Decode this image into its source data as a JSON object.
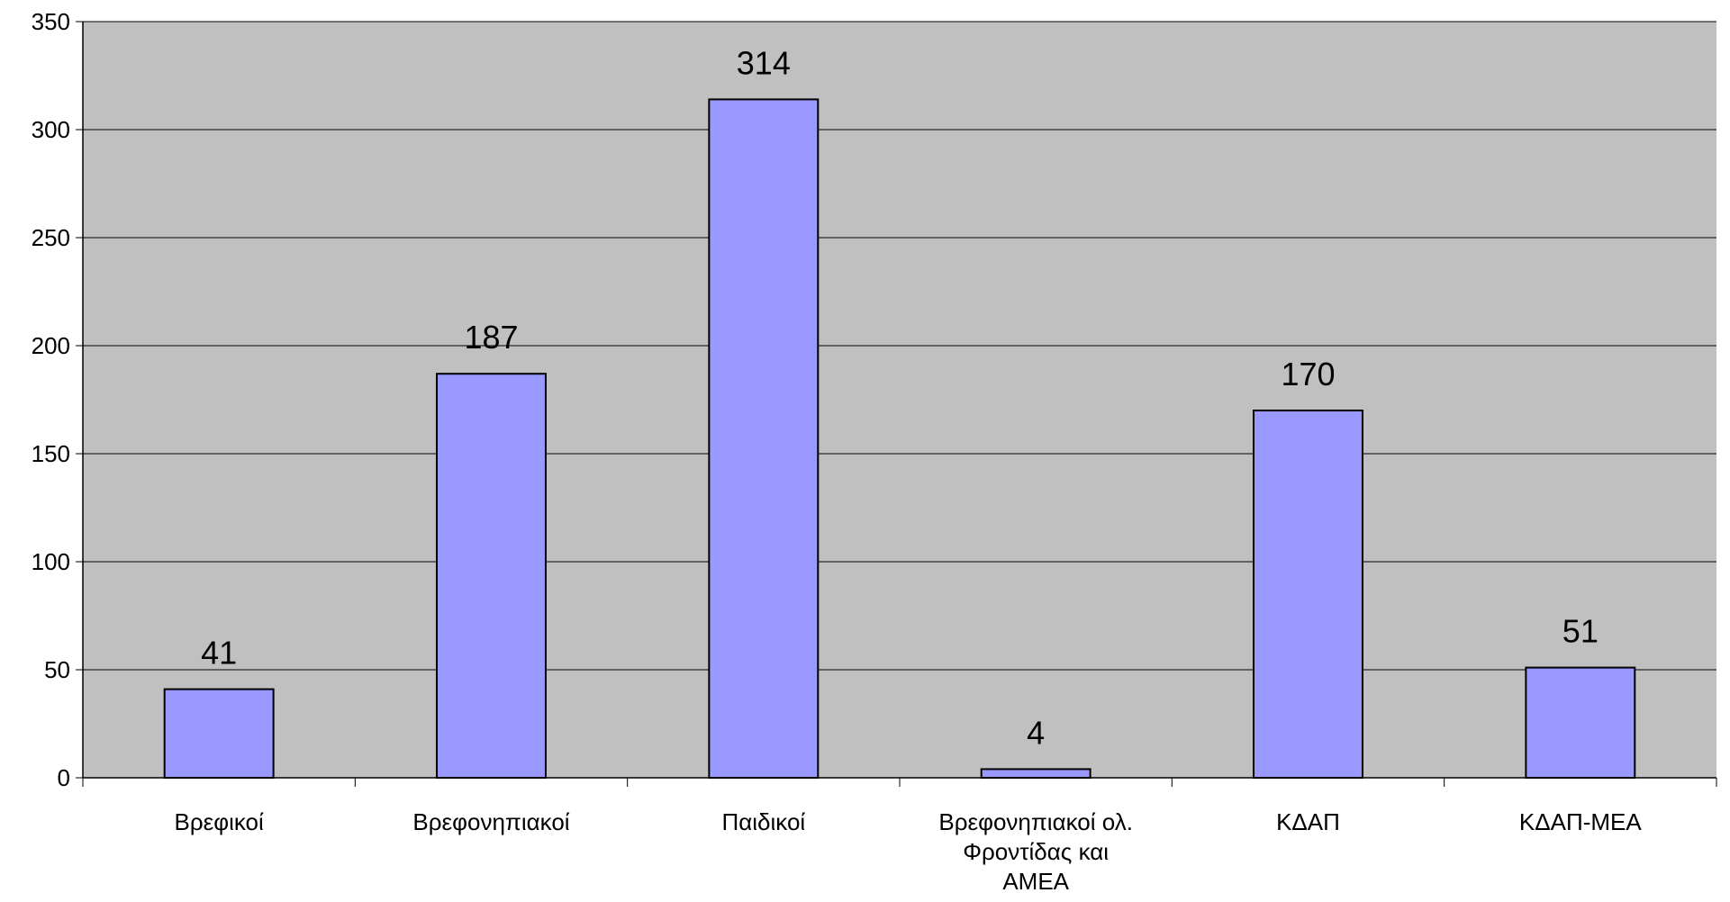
{
  "chart_data": {
    "type": "bar",
    "categories": [
      "Βρεφικοί",
      "Βρεφονηπιακοί",
      "Παιδικοί",
      "Βρεφονηπιακοί ολ.\nΦροντίδας και\nΑΜΕΑ",
      "ΚΔΑΠ",
      "ΚΔΑΠ-ΜΕΑ"
    ],
    "values": [
      41,
      187,
      314,
      4,
      170,
      51
    ],
    "color": "#9999ff",
    "ylim": [
      0,
      350
    ],
    "yticks": [
      0,
      50,
      100,
      150,
      200,
      250,
      300,
      350
    ],
    "grid": true
  }
}
